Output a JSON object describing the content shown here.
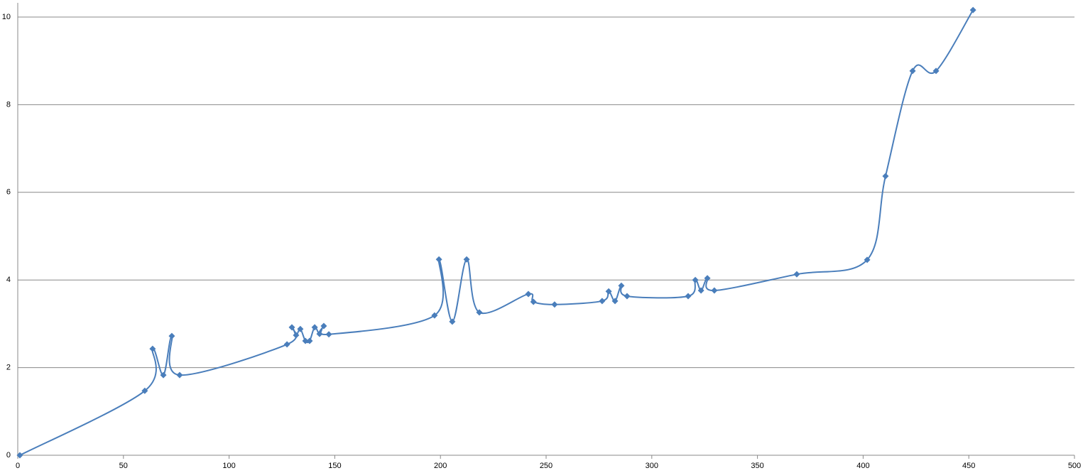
{
  "chart_data": {
    "type": "scatter",
    "line": "smooth",
    "marker": "diamond",
    "color": "#4a7ebb",
    "grid": true,
    "x": [
      1,
      60.1,
      63.8,
      68.9,
      72.9,
      76.6,
      127.4,
      129.7,
      131.7,
      133.7,
      136.1,
      138.1,
      140.5,
      142.8,
      144.8,
      147.2,
      197.2,
      199.3,
      205.6,
      212.4,
      218.4,
      241.6,
      244.0,
      254.0,
      276.5,
      279.6,
      282.6,
      285.6,
      288.3,
      317.2,
      320.6,
      323.3,
      326.3,
      329.6,
      368.6,
      401.9,
      410.6,
      423.4,
      434.5,
      452.0
    ],
    "values": [
      0,
      1.47,
      2.43,
      1.83,
      2.72,
      1.83,
      2.53,
      2.92,
      2.74,
      2.88,
      2.61,
      2.61,
      2.92,
      2.77,
      2.95,
      2.76,
      3.19,
      4.47,
      3.05,
      4.47,
      3.26,
      3.68,
      3.5,
      3.44,
      3.52,
      3.74,
      3.52,
      3.87,
      3.63,
      3.63,
      4.0,
      3.76,
      4.04,
      3.76,
      4.13,
      4.46,
      6.37,
      8.77,
      8.77,
      10.16
    ],
    "xlim": [
      0,
      500
    ],
    "xticks": [
      0,
      50,
      100,
      150,
      200,
      250,
      300,
      350,
      400,
      450,
      500
    ],
    "ylim": [
      0,
      10
    ],
    "yticks": [
      0,
      2,
      4,
      6,
      8,
      10
    ]
  }
}
